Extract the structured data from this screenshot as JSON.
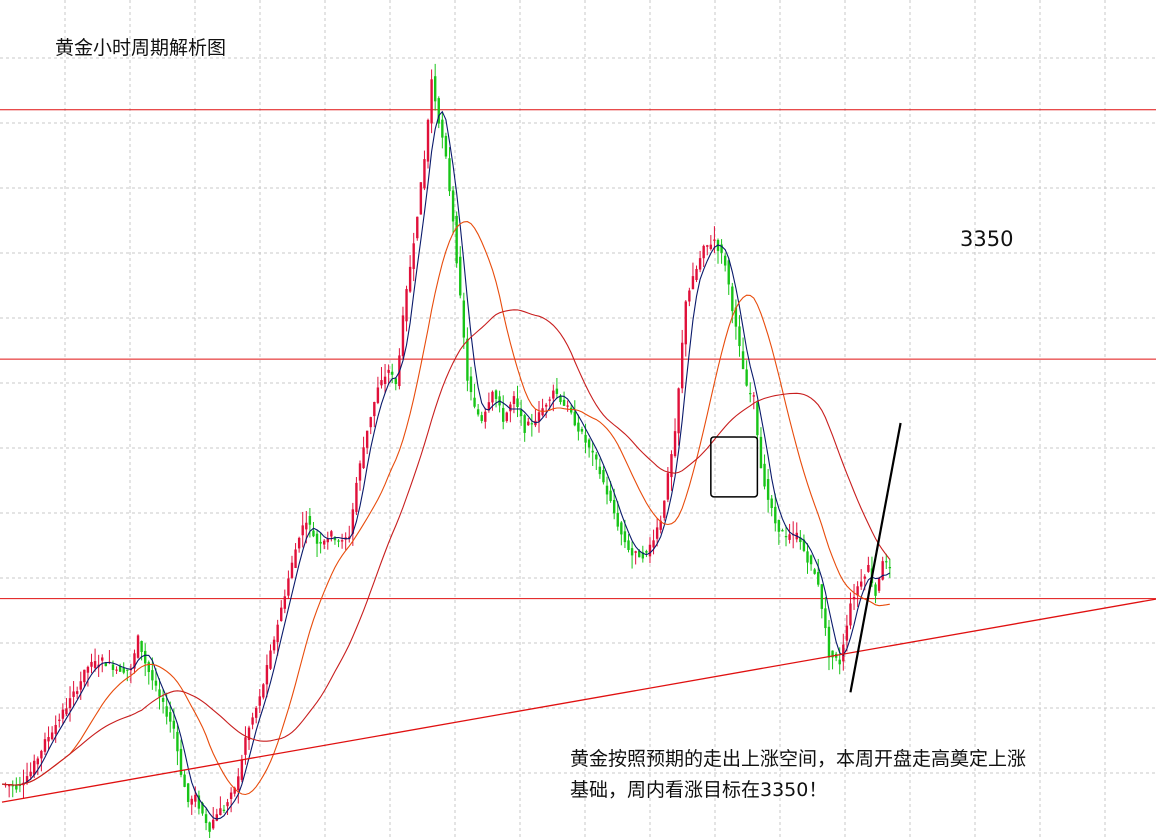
{
  "chart_data": {
    "type": "candlestick",
    "title": "黄金小时周期解析图",
    "xlabel": "",
    "ylabel": "",
    "ylim": [
      3110,
      3530
    ],
    "grid": true,
    "colors": {
      "up": "#e0103a",
      "down": "#18c418",
      "ma_short": "#0a1a6b",
      "ma_mid": "#e84c0c",
      "ma_long": "#c81e1e",
      "level": "#e01010",
      "trend": "#e01010",
      "pen": "#000000"
    },
    "resistance_levels": [
      3475,
      3350,
      3230
    ],
    "level_label": "3350",
    "annotation": "黄金按照预期的走出上涨空间，本周开盘走高奠定上涨基础，周内看涨目标在3350！",
    "annotation_lines": [
      "黄金按照预期的走出上涨空间，本周开盘走高奠定上涨",
      "基础，周内看涨目标在3350！"
    ],
    "box_highlight": {
      "x_range": [
        198,
        211
      ],
      "y_range": [
        3281,
        3311
      ]
    },
    "trendline": {
      "from": [
        0,
        3128
      ],
      "to": [
        320,
        3229
      ]
    },
    "forecast_line": {
      "from": [
        237,
        3183
      ],
      "to": [
        251,
        3318
      ]
    },
    "price_anchors": [
      [
        0,
        3137
      ],
      [
        4,
        3136
      ],
      [
        8,
        3143
      ],
      [
        12,
        3158
      ],
      [
        16,
        3170
      ],
      [
        20,
        3182
      ],
      [
        24,
        3196
      ],
      [
        28,
        3199
      ],
      [
        32,
        3195
      ],
      [
        36,
        3194
      ],
      [
        38,
        3210
      ],
      [
        40,
        3198
      ],
      [
        44,
        3180
      ],
      [
        48,
        3165
      ],
      [
        50,
        3143
      ],
      [
        52,
        3128
      ],
      [
        54,
        3130
      ],
      [
        56,
        3122
      ],
      [
        58,
        3115
      ],
      [
        60,
        3123
      ],
      [
        62,
        3125
      ],
      [
        64,
        3131
      ],
      [
        66,
        3140
      ],
      [
        68,
        3160
      ],
      [
        72,
        3180
      ],
      [
        76,
        3210
      ],
      [
        80,
        3240
      ],
      [
        83,
        3262
      ],
      [
        85,
        3270
      ],
      [
        88,
        3258
      ],
      [
        92,
        3262
      ],
      [
        95,
        3258
      ],
      [
        97,
        3262
      ],
      [
        99,
        3288
      ],
      [
        102,
        3315
      ],
      [
        105,
        3335
      ],
      [
        108,
        3345
      ],
      [
        110,
        3337
      ],
      [
        112,
        3370
      ],
      [
        115,
        3410
      ],
      [
        118,
        3450
      ],
      [
        120,
        3490
      ],
      [
        122,
        3470
      ],
      [
        124,
        3450
      ],
      [
        126,
        3420
      ],
      [
        128,
        3380
      ],
      [
        130,
        3340
      ],
      [
        132,
        3325
      ],
      [
        134,
        3320
      ],
      [
        137,
        3335
      ],
      [
        140,
        3320
      ],
      [
        143,
        3330
      ],
      [
        146,
        3315
      ],
      [
        150,
        3322
      ],
      [
        154,
        3335
      ],
      [
        158,
        3325
      ],
      [
        162,
        3312
      ],
      [
        166,
        3298
      ],
      [
        170,
        3278
      ],
      [
        173,
        3262
      ],
      [
        176,
        3252
      ],
      [
        180,
        3252
      ],
      [
        184,
        3270
      ],
      [
        188,
        3312
      ],
      [
        191,
        3380
      ],
      [
        193,
        3390
      ],
      [
        196,
        3405
      ],
      [
        199,
        3410
      ],
      [
        202,
        3398
      ],
      [
        205,
        3365
      ],
      [
        208,
        3335
      ],
      [
        210,
        3330
      ],
      [
        212,
        3296
      ],
      [
        214,
        3280
      ],
      [
        216,
        3268
      ],
      [
        219,
        3260
      ],
      [
        222,
        3262
      ],
      [
        225,
        3250
      ],
      [
        228,
        3238
      ],
      [
        231,
        3202
      ],
      [
        234,
        3198
      ],
      [
        237,
        3228
      ],
      [
        240,
        3240
      ],
      [
        242,
        3246
      ],
      [
        244,
        3232
      ],
      [
        246,
        3250
      ],
      [
        248,
        3244
      ]
    ]
  }
}
